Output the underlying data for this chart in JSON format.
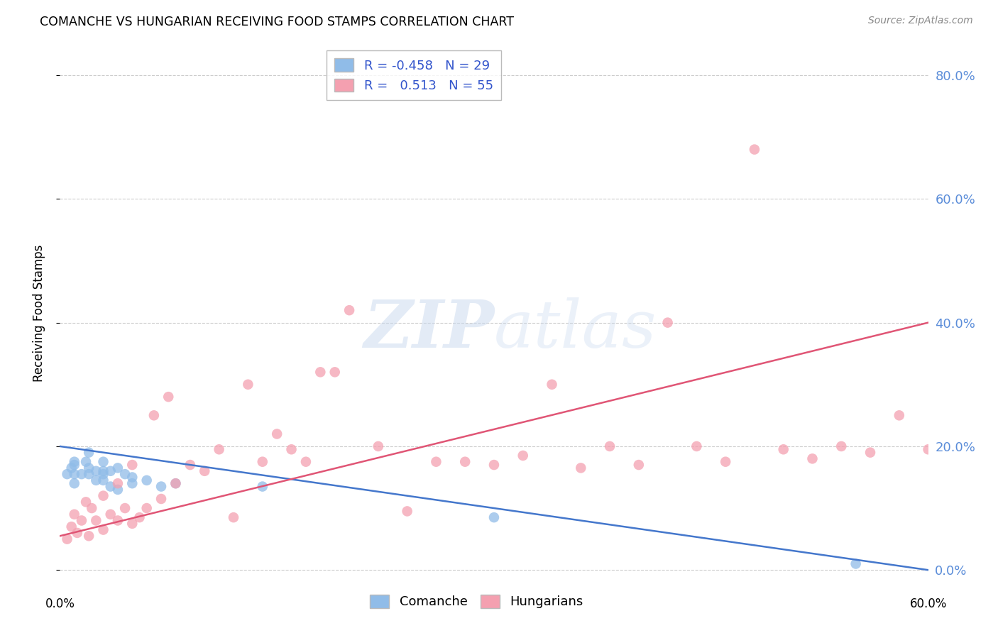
{
  "title": "COMANCHE VS HUNGARIAN RECEIVING FOOD STAMPS CORRELATION CHART",
  "source": "Source: ZipAtlas.com",
  "ylabel": "Receiving Food Stamps",
  "xlim": [
    0.0,
    0.6
  ],
  "ylim": [
    -0.02,
    0.85
  ],
  "ytick_values": [
    0.0,
    0.2,
    0.4,
    0.6,
    0.8
  ],
  "xtick_values": [
    0.0,
    0.1,
    0.2,
    0.3,
    0.4,
    0.5,
    0.6
  ],
  "grid_color": "#cccccc",
  "background_color": "#ffffff",
  "legend_R_blue": "-0.458",
  "legend_N_blue": "29",
  "legend_R_pink": "0.513",
  "legend_N_pink": "55",
  "blue_color": "#90bce8",
  "pink_color": "#f4a0b0",
  "line_blue_color": "#4477cc",
  "line_pink_color": "#e05575",
  "right_axis_color": "#5b8dd9",
  "comanche_x": [
    0.005,
    0.008,
    0.01,
    0.01,
    0.01,
    0.01,
    0.015,
    0.018,
    0.02,
    0.02,
    0.02,
    0.025,
    0.025,
    0.03,
    0.03,
    0.03,
    0.03,
    0.035,
    0.035,
    0.04,
    0.04,
    0.045,
    0.05,
    0.05,
    0.06,
    0.07,
    0.08,
    0.14,
    0.3,
    0.55
  ],
  "comanche_y": [
    0.155,
    0.165,
    0.14,
    0.155,
    0.17,
    0.175,
    0.155,
    0.175,
    0.155,
    0.165,
    0.19,
    0.145,
    0.16,
    0.145,
    0.155,
    0.16,
    0.175,
    0.135,
    0.16,
    0.13,
    0.165,
    0.155,
    0.14,
    0.15,
    0.145,
    0.135,
    0.14,
    0.135,
    0.085,
    0.01
  ],
  "hungarian_x": [
    0.005,
    0.008,
    0.01,
    0.012,
    0.015,
    0.018,
    0.02,
    0.022,
    0.025,
    0.03,
    0.03,
    0.035,
    0.04,
    0.04,
    0.045,
    0.05,
    0.05,
    0.055,
    0.06,
    0.065,
    0.07,
    0.075,
    0.08,
    0.09,
    0.1,
    0.11,
    0.12,
    0.13,
    0.14,
    0.15,
    0.16,
    0.17,
    0.18,
    0.19,
    0.2,
    0.22,
    0.24,
    0.26,
    0.28,
    0.3,
    0.32,
    0.34,
    0.36,
    0.38,
    0.4,
    0.42,
    0.44,
    0.46,
    0.48,
    0.5,
    0.52,
    0.54,
    0.56,
    0.58,
    0.6
  ],
  "hungarian_y": [
    0.05,
    0.07,
    0.09,
    0.06,
    0.08,
    0.11,
    0.055,
    0.1,
    0.08,
    0.065,
    0.12,
    0.09,
    0.08,
    0.14,
    0.1,
    0.075,
    0.17,
    0.085,
    0.1,
    0.25,
    0.115,
    0.28,
    0.14,
    0.17,
    0.16,
    0.195,
    0.085,
    0.3,
    0.175,
    0.22,
    0.195,
    0.175,
    0.32,
    0.32,
    0.42,
    0.2,
    0.095,
    0.175,
    0.175,
    0.17,
    0.185,
    0.3,
    0.165,
    0.2,
    0.17,
    0.4,
    0.2,
    0.175,
    0.68,
    0.195,
    0.18,
    0.2,
    0.19,
    0.25,
    0.195
  ],
  "blue_line_x": [
    0.0,
    0.6
  ],
  "blue_line_y": [
    0.2,
    0.0
  ],
  "pink_line_x": [
    0.0,
    0.6
  ],
  "pink_line_y": [
    0.055,
    0.4
  ]
}
